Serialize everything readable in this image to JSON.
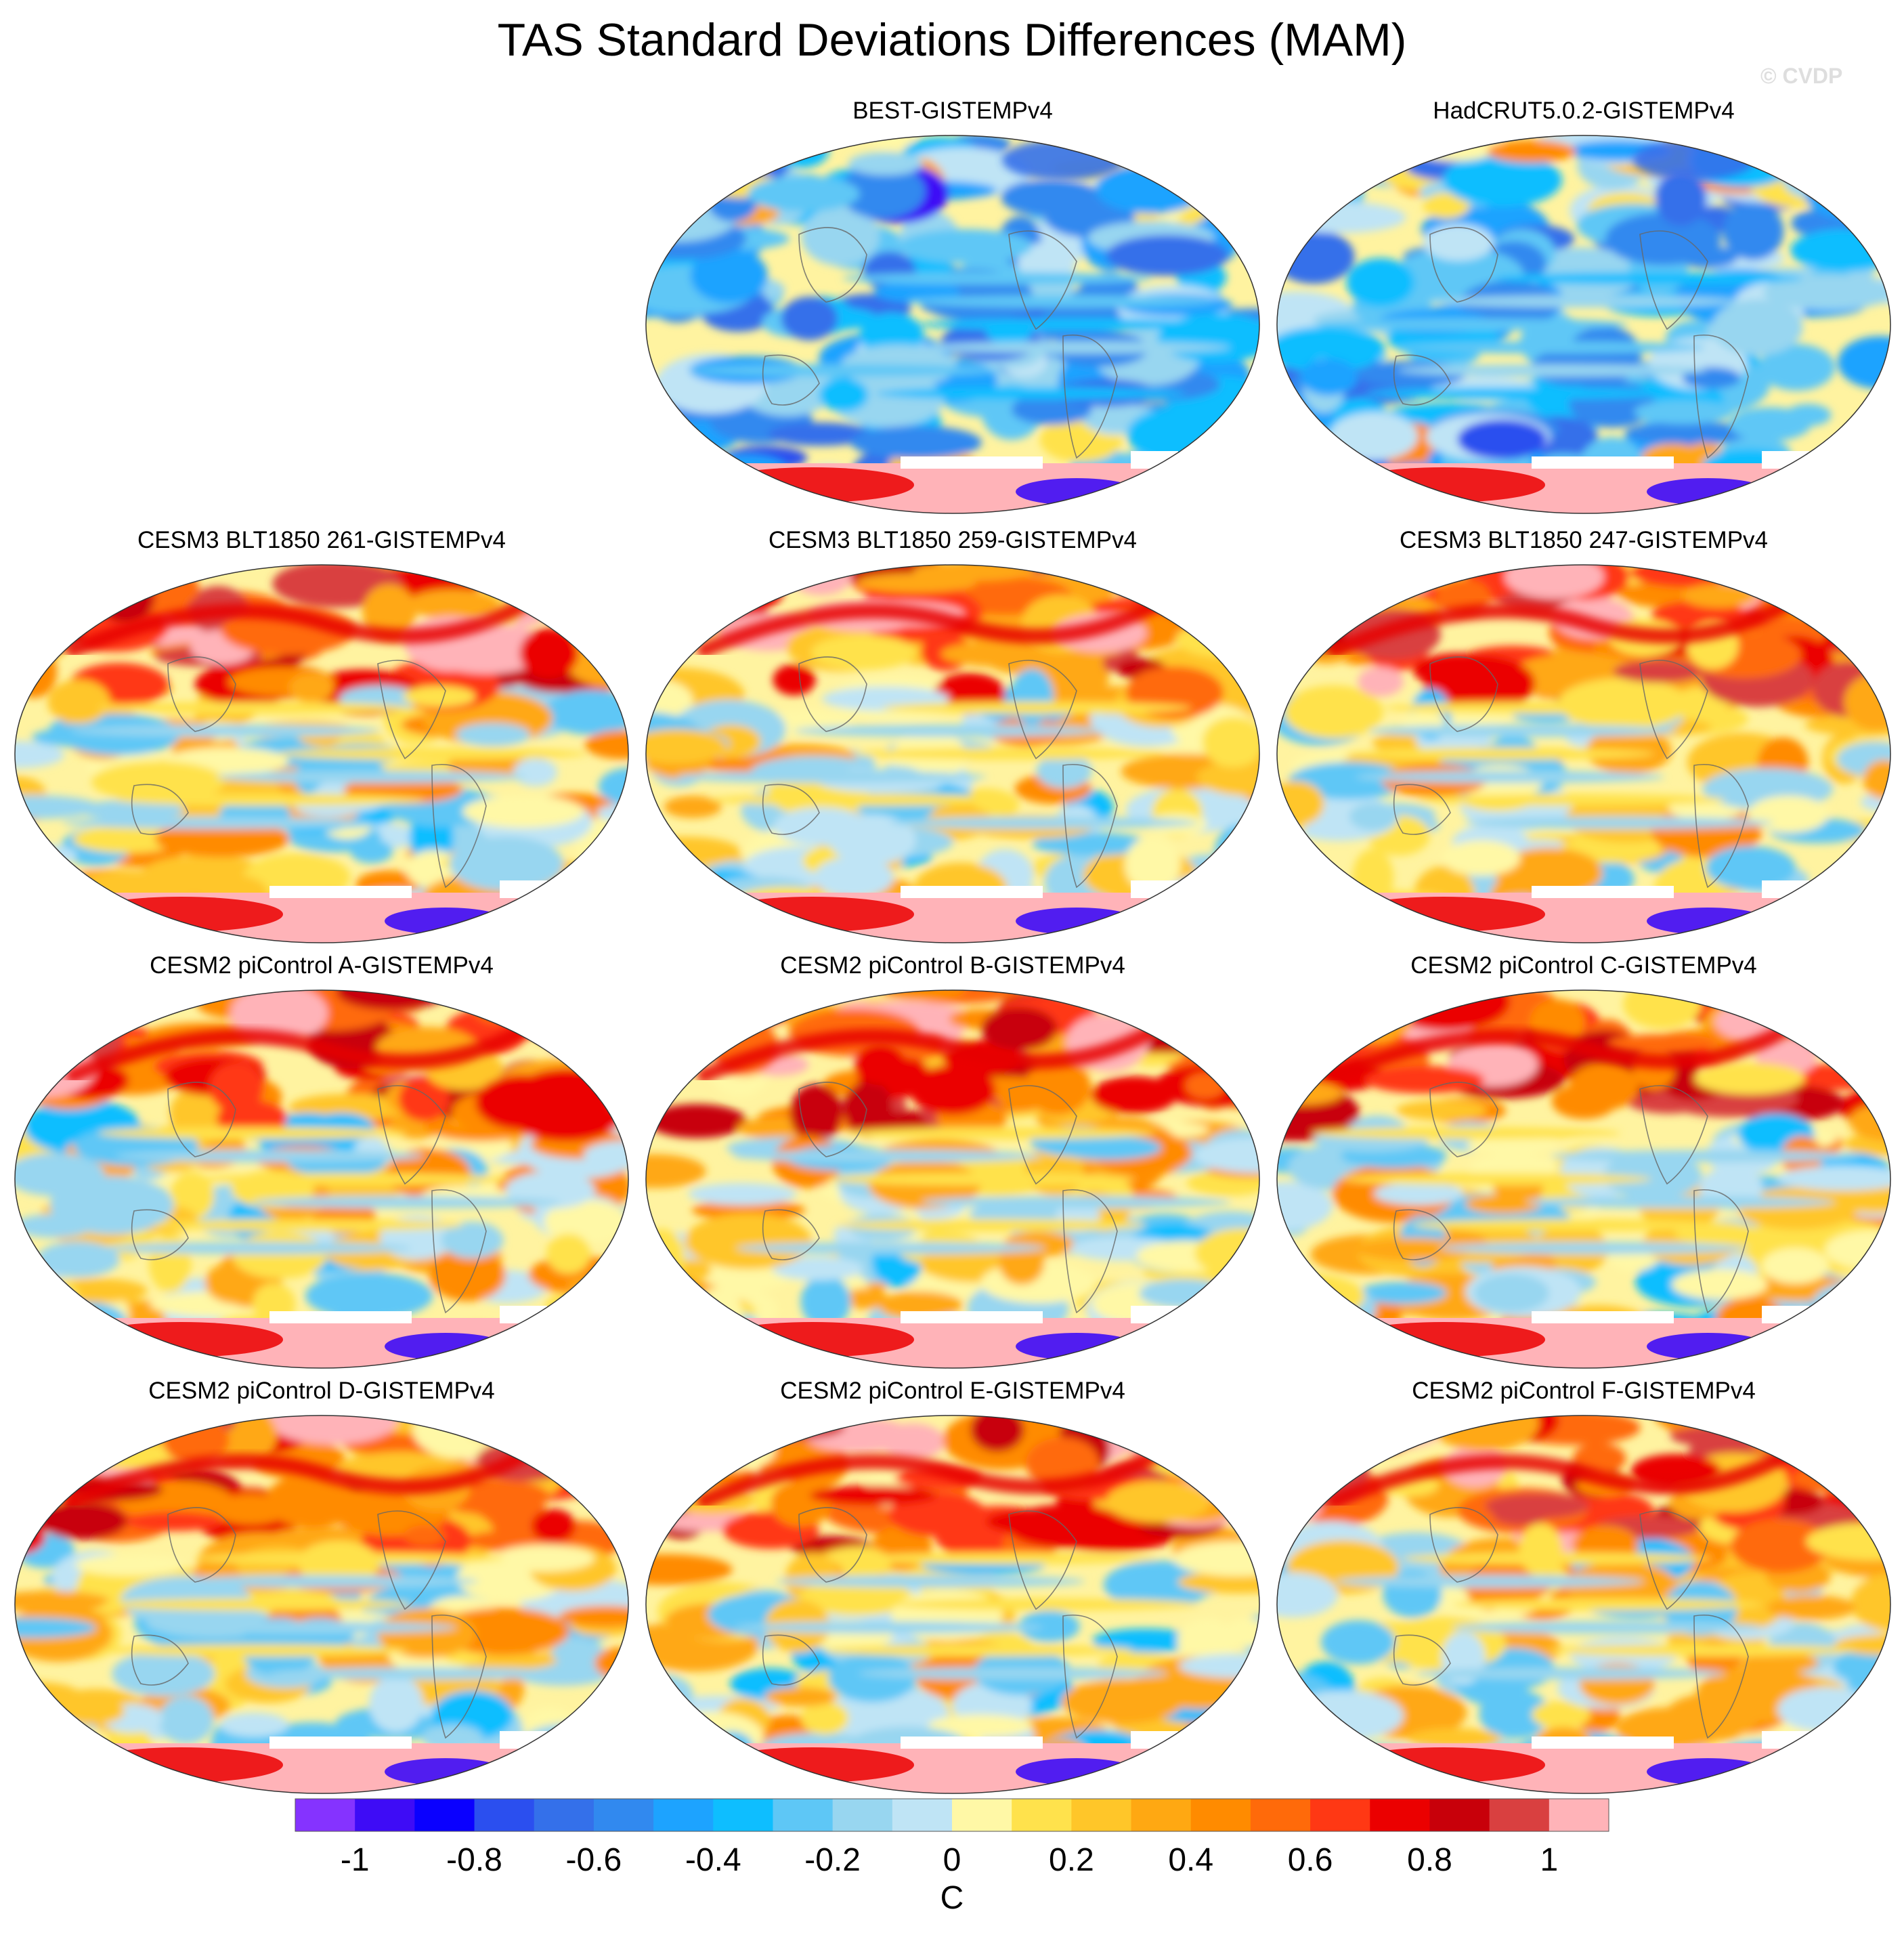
{
  "title": "TAS Standard Deviations Differences (MAM)",
  "watermark": "© CVDP",
  "colorbar": {
    "unit": "C",
    "colors": [
      "#8533ff",
      "#3e0cf6",
      "#0a00ff",
      "#2b4fef",
      "#3470ea",
      "#3189ef",
      "#1da3ff",
      "#0ebeff",
      "#5ec7f6",
      "#98d6f0",
      "#bfe4f5",
      "#fff8a6",
      "#ffe24c",
      "#ffc629",
      "#ffa812",
      "#ff8b00",
      "#ff6a0a",
      "#ff3814",
      "#eb0000",
      "#c8000a",
      "#d94040",
      "#ffb3b8"
    ],
    "tick_values": [
      -1,
      -0.8,
      -0.6,
      -0.4,
      -0.2,
      0,
      0.2,
      0.4,
      0.6,
      0.8,
      1
    ],
    "tick_labels": [
      "-1",
      "-0.8",
      "-0.6",
      "-0.4",
      "-0.2",
      "0",
      "0.2",
      "0.4",
      "0.6",
      "0.8",
      "1"
    ]
  },
  "chart_data": {
    "type": "heatmap",
    "title": "TAS Standard Deviations Differences (MAM)",
    "variable": "TAS standard deviation difference",
    "season": "MAM",
    "unit": "C",
    "range": [
      -1.1,
      1.1
    ],
    "levels": [
      -1,
      -0.9,
      -0.8,
      -0.7,
      -0.6,
      -0.5,
      -0.4,
      -0.3,
      -0.2,
      -0.1,
      0,
      0.1,
      0.2,
      0.3,
      0.4,
      0.5,
      0.6,
      0.7,
      0.8,
      0.9,
      1
    ],
    "panels": [
      {
        "label": "BEST-GISTEMPv4",
        "row": 0,
        "col": 1
      },
      {
        "label": "HadCRUT5.0.2-GISTEMPv4",
        "row": 0,
        "col": 2
      },
      {
        "label": "CESM3 BLT1850 261-GISTEMPv4",
        "row": 1,
        "col": 0
      },
      {
        "label": "CESM3 BLT1850 259-GISTEMPv4",
        "row": 1,
        "col": 1
      },
      {
        "label": "CESM3 BLT1850 247-GISTEMPv4",
        "row": 1,
        "col": 2
      },
      {
        "label": "CESM2 piControl A-GISTEMPv4",
        "row": 2,
        "col": 0
      },
      {
        "label": "CESM2 piControl B-GISTEMPv4",
        "row": 2,
        "col": 1
      },
      {
        "label": "CESM2 piControl C-GISTEMPv4",
        "row": 2,
        "col": 2
      },
      {
        "label": "CESM2 piControl D-GISTEMPv4",
        "row": 3,
        "col": 0
      },
      {
        "label": "CESM2 piControl E-GISTEMPv4",
        "row": 3,
        "col": 1
      },
      {
        "label": "CESM2 piControl F-GISTEMPv4",
        "row": 3,
        "col": 2
      }
    ]
  }
}
